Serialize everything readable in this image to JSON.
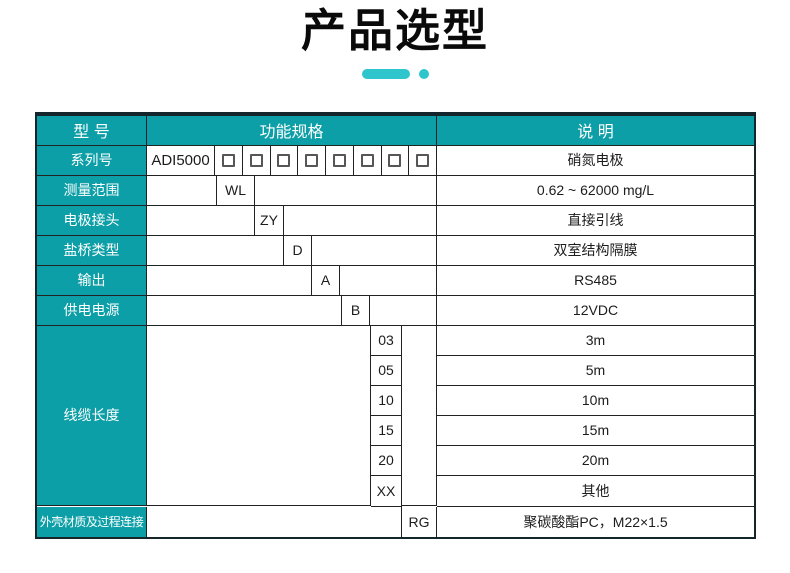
{
  "title": "产品选型",
  "colors": {
    "teal": "#0d9fa7",
    "accent": "#2fc5cd",
    "grid_line": "#222222",
    "outer_border": "#14262b"
  },
  "table": {
    "header": {
      "col_model": "型 号",
      "col_spec": "功能规格",
      "col_desc": "说 明"
    },
    "series_row": {
      "label": "系列号",
      "series_code": "ADI5000",
      "checkbox_count": 8,
      "desc": "硝氮电极"
    },
    "spec_rows": [
      {
        "label": "测量范围",
        "code": "WL",
        "desc": "0.62 ~ 62000 mg/L"
      },
      {
        "label": "电极接头",
        "code": "ZY",
        "desc": "直接引线"
      },
      {
        "label": "盐桥类型",
        "code": "D",
        "desc": "双室结构隔膜"
      },
      {
        "label": "输出",
        "code": "A",
        "desc": "RS485"
      },
      {
        "label": "供电电源",
        "code": "B",
        "desc": "12VDC"
      }
    ],
    "cable_row": {
      "label": "线缆长度",
      "options": [
        {
          "code": "03",
          "desc": "3m"
        },
        {
          "code": "05",
          "desc": "5m"
        },
        {
          "code": "10",
          "desc": "10m"
        },
        {
          "code": "15",
          "desc": "15m"
        },
        {
          "code": "20",
          "desc": "20m"
        },
        {
          "code": "XX",
          "desc": "其他"
        }
      ]
    },
    "housing_row": {
      "label": "外壳材质及过程连接",
      "code": "RG",
      "desc": "聚碳酸酯PC，M22×1.5"
    }
  }
}
